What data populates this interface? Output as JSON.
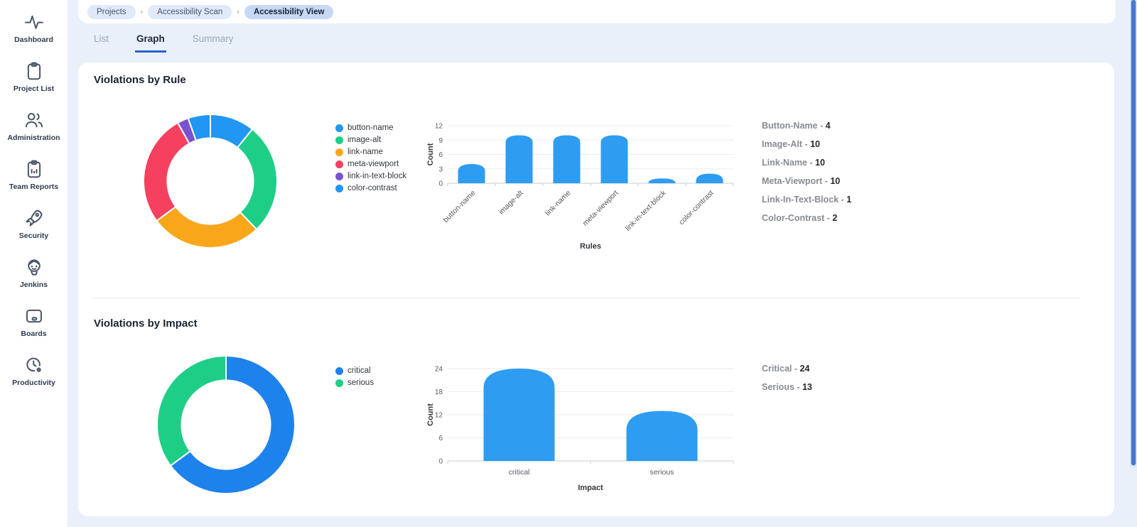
{
  "ui_colors": {
    "background": "#E9F0FA",
    "card": "#FFFFFF",
    "accent_blue": "#2196F3",
    "tab_underline": "#2563C9",
    "breadcrumb_pill": "#DFE9F8",
    "breadcrumb_pill_active": "#C6D8F4",
    "scrollbar": "#4679CE"
  },
  "sidebar": {
    "items": [
      {
        "label": "Dashboard",
        "icon": "activity-icon"
      },
      {
        "label": "Project List",
        "icon": "clipboard-icon"
      },
      {
        "label": "Administration",
        "icon": "users-icon"
      },
      {
        "label": "Team Reports",
        "icon": "report-clipboard-icon"
      },
      {
        "label": "Security",
        "icon": "rocket-icon"
      },
      {
        "label": "Jenkins",
        "icon": "jenkins-icon"
      },
      {
        "label": "Boards",
        "icon": "board-icon"
      },
      {
        "label": "Productivity",
        "icon": "clock-gear-icon"
      }
    ]
  },
  "breadcrumb": {
    "separator": "›",
    "items": [
      {
        "label": "Projects",
        "active": false
      },
      {
        "label": "Accessibility Scan",
        "active": false
      },
      {
        "label": "Accessibility View",
        "active": true
      }
    ]
  },
  "tabs": [
    {
      "label": "List",
      "active": false
    },
    {
      "label": "Graph",
      "active": true
    },
    {
      "label": "Summary",
      "active": false
    }
  ],
  "sections": [
    {
      "title": "Violations by Rule",
      "summary": [
        {
          "label": "Button-Name",
          "value": "4"
        },
        {
          "label": "Image-Alt",
          "value": "10"
        },
        {
          "label": "Link-Name",
          "value": "10"
        },
        {
          "label": "Meta-Viewport",
          "value": "10"
        },
        {
          "label": "Link-In-Text-Block",
          "value": "1"
        },
        {
          "label": "Color-Contrast",
          "value": "2"
        }
      ]
    },
    {
      "title": "Violations by Impact",
      "summary": [
        {
          "label": "Critical",
          "value": "24"
        },
        {
          "label": "Serious",
          "value": "13"
        }
      ]
    }
  ],
  "chart_data": [
    {
      "type": "pie",
      "subtype": "donut",
      "section": "Violations by Rule",
      "labels": [
        "button-name",
        "image-alt",
        "link-name",
        "meta-viewport",
        "link-in-text-block",
        "color-contrast"
      ],
      "values": [
        4,
        10,
        10,
        10,
        1,
        2
      ],
      "colors": [
        "#2196F3",
        "#1ECE87",
        "#F9A61B",
        "#F5405F",
        "#7A52CF",
        "#2196F3"
      ],
      "legend_position": "right"
    },
    {
      "type": "bar",
      "section": "Violations by Rule",
      "categories": [
        "button-name",
        "image-alt",
        "link-name",
        "meta-viewport",
        "link-in-text-block",
        "color-contrast"
      ],
      "values": [
        4,
        10,
        10,
        10,
        1,
        2
      ],
      "xlabel": "Rules",
      "ylabel": "Count",
      "ylim": [
        0,
        12
      ],
      "yticks": [
        0,
        3,
        6,
        9,
        12
      ],
      "bar_color": "#2D9CF1",
      "grid": true,
      "rotate_labels": true
    },
    {
      "type": "pie",
      "subtype": "donut",
      "section": "Violations by Impact",
      "labels": [
        "critical",
        "serious"
      ],
      "values": [
        24,
        13
      ],
      "colors": [
        "#1E82EC",
        "#1ECE87"
      ],
      "legend_position": "right"
    },
    {
      "type": "bar",
      "section": "Violations by Impact",
      "categories": [
        "critical",
        "serious"
      ],
      "values": [
        24,
        13
      ],
      "xlabel": "Impact",
      "ylabel": "Count",
      "ylim": [
        0,
        24
      ],
      "yticks": [
        0,
        6,
        12,
        18,
        24
      ],
      "bar_color": "#2D9CF1",
      "grid": true,
      "rotate_labels": false
    }
  ]
}
